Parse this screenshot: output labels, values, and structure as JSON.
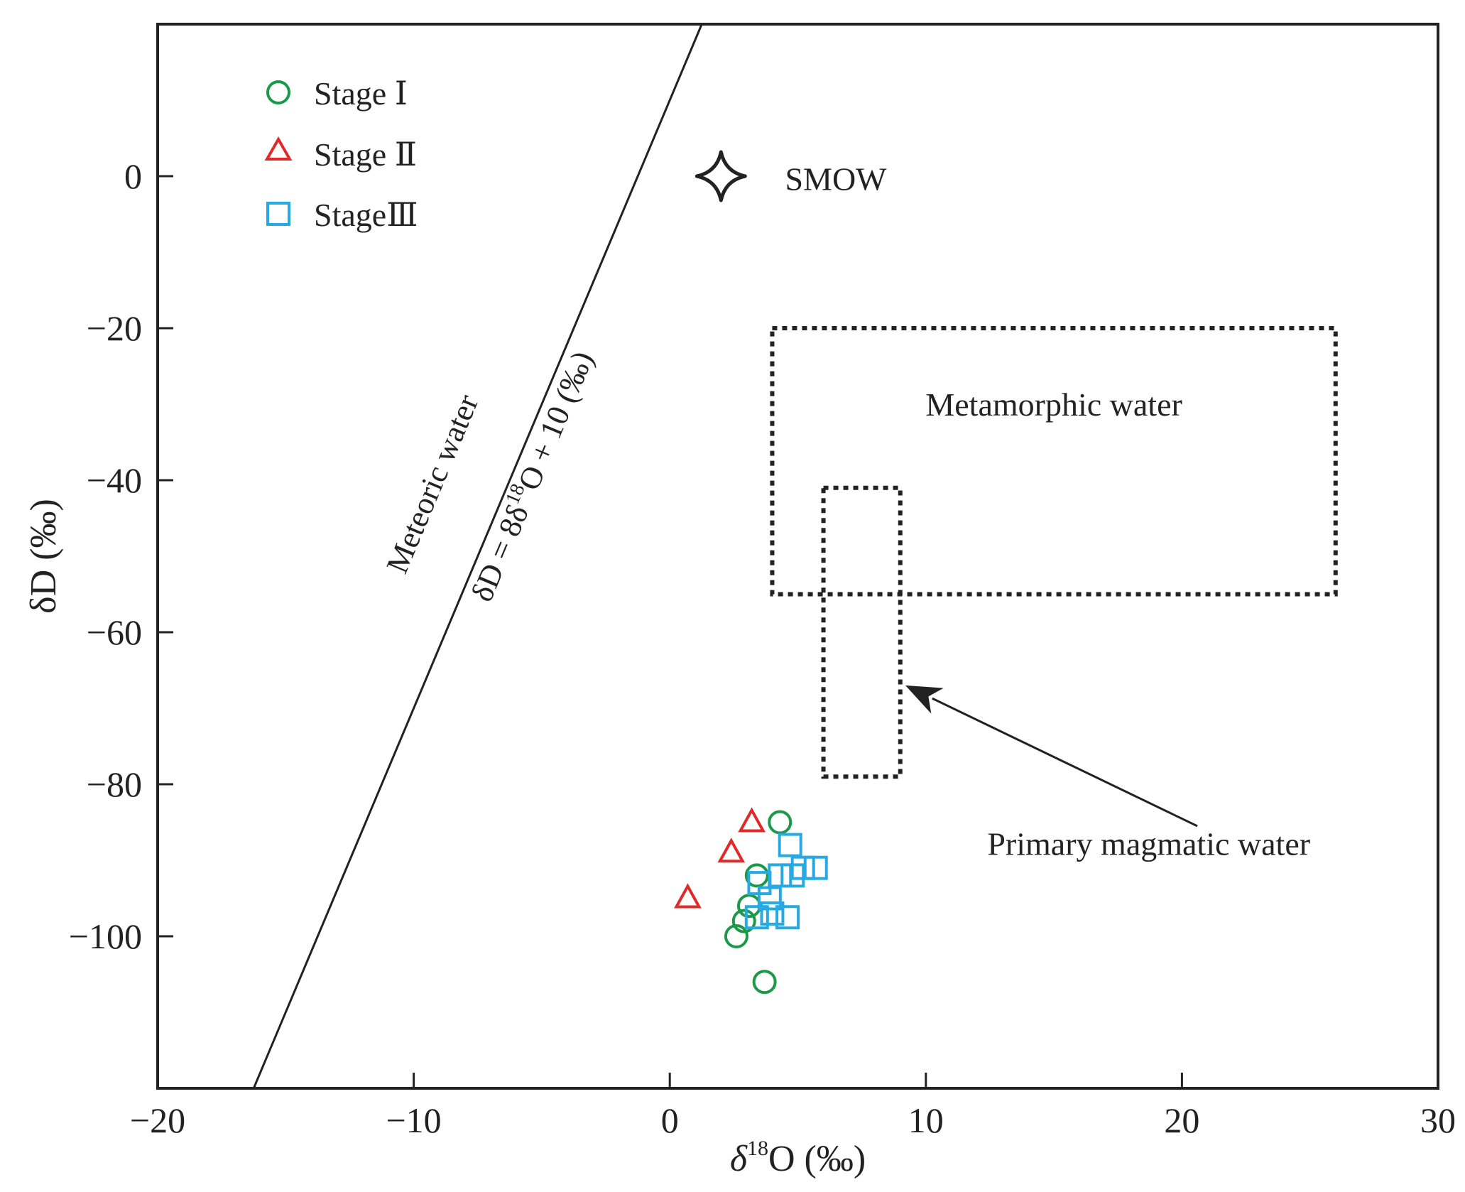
{
  "chart_data": {
    "type": "scatter",
    "title": "",
    "xlabel": {
      "prefix": "δ",
      "sup": "18",
      "main": "O (‰)"
    },
    "ylabel": "δD (‰)",
    "xlim": [
      -20,
      30
    ],
    "ylim": [
      -120,
      20
    ],
    "x_ticks": [
      -20,
      -10,
      0,
      10,
      20,
      30
    ],
    "x_tick_labels": [
      "−20",
      "−10",
      "0",
      "10",
      "20",
      "30"
    ],
    "y_ticks": [
      0,
      -20,
      -40,
      -60,
      -80,
      -100
    ],
    "y_tick_labels": [
      "0",
      "−20",
      "−40",
      "−60",
      "−80",
      "−100"
    ],
    "legend_position": "top-left",
    "series": [
      {
        "name": "Stage Ⅰ",
        "marker": "circle",
        "color": "#1a9a48",
        "points": [
          [
            4.3,
            -85
          ],
          [
            3.4,
            -92
          ],
          [
            3.1,
            -96
          ],
          [
            2.9,
            -98
          ],
          [
            2.6,
            -100
          ],
          [
            3.7,
            -106
          ]
        ]
      },
      {
        "name": "Stage Ⅱ",
        "marker": "triangle",
        "color": "#e02a2a",
        "points": [
          [
            3.2,
            -85
          ],
          [
            2.4,
            -89
          ],
          [
            0.7,
            -95
          ]
        ]
      },
      {
        "name": "StageⅢ",
        "marker": "square",
        "color": "#27a9e1",
        "points": [
          [
            4.7,
            -88
          ],
          [
            4.3,
            -92
          ],
          [
            4.8,
            -92
          ],
          [
            5.2,
            -91
          ],
          [
            5.7,
            -91
          ],
          [
            3.5,
            -93
          ],
          [
            3.9,
            -95
          ],
          [
            4.0,
            -97
          ],
          [
            3.4,
            -97.5
          ],
          [
            4.6,
            -97.5
          ]
        ]
      }
    ],
    "meteoric_line": {
      "slope": 8,
      "intercept": 10,
      "label_1": "Meteoric water",
      "label_2": {
        "lhs": "δD = 8δ",
        "sup": "18",
        "rhs": "O + 10 (‰)"
      }
    },
    "smow": {
      "x": 2,
      "y": 0,
      "label": "SMOW"
    },
    "regions": [
      {
        "name": "Metamorphic water",
        "x_range": [
          4,
          26
        ],
        "y_range": [
          -55,
          -20
        ]
      },
      {
        "name": "Primary magmatic water",
        "x_range": [
          6,
          9
        ],
        "y_range": [
          -79,
          -41
        ],
        "arrow_to": [
          9.2,
          -67
        ]
      }
    ]
  }
}
